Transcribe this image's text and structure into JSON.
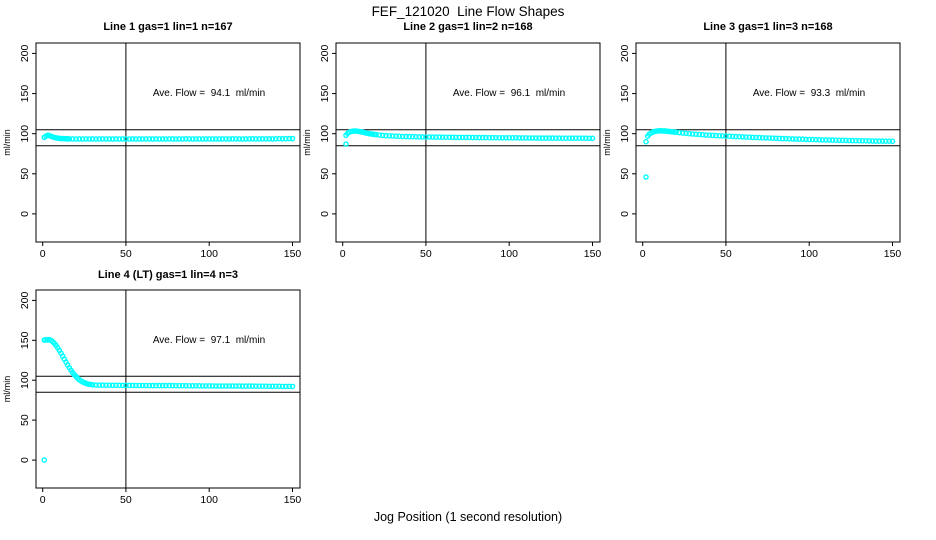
{
  "figure": {
    "title": "FEF_121020  Line Flow Shapes",
    "xlabel": "Jog Position (1 second resolution)",
    "point_color": "#00ffff",
    "axis_color": "#000000",
    "background": "#ffffff"
  },
  "chart_data": [
    {
      "type": "scatter",
      "title": "Line 1 gas=1 lin=1 n=167",
      "annotation": "Ave. Flow =  94.1  ml/min",
      "ylabel": "ml/min",
      "xlim": [
        -4,
        154.5
      ],
      "ylim": [
        -35,
        213
      ],
      "xticks": [
        0,
        50,
        100,
        150
      ],
      "yticks": [
        0,
        50,
        100,
        150,
        200
      ],
      "hlines": [
        105,
        85
      ],
      "vlines": [
        50
      ],
      "grid": false,
      "ave_flow_ml_min": 94.1,
      "points": [
        [
          1,
          95.5
        ],
        [
          2,
          97
        ],
        [
          3,
          98
        ],
        [
          4,
          97.6
        ],
        [
          5,
          96.8
        ],
        [
          6,
          96
        ],
        [
          7,
          95.3
        ],
        [
          8,
          94.8
        ],
        [
          9,
          94.4
        ],
        [
          10,
          94.1
        ],
        [
          11,
          93.9
        ],
        [
          12,
          93.8
        ],
        [
          13,
          93.7
        ],
        [
          14,
          93.6
        ],
        [
          15,
          93.6
        ],
        [
          16,
          93.5
        ],
        [
          18,
          93.5
        ],
        [
          20,
          93.4
        ],
        [
          22,
          93.5
        ],
        [
          24,
          93.4
        ],
        [
          26,
          93.5
        ],
        [
          28,
          93.4
        ],
        [
          30,
          93.5
        ],
        [
          32,
          93.4
        ],
        [
          34,
          93.5
        ],
        [
          36,
          93.5
        ],
        [
          38,
          93.4
        ],
        [
          40,
          93.5
        ],
        [
          42,
          93.4
        ],
        [
          44,
          93.5
        ],
        [
          46,
          93.4
        ],
        [
          48,
          93.5
        ],
        [
          50,
          93.5
        ],
        [
          52,
          93.4
        ],
        [
          54,
          93.5
        ],
        [
          56,
          93.4
        ],
        [
          58,
          93.5
        ],
        [
          60,
          93.4
        ],
        [
          62,
          93.5
        ],
        [
          64,
          93.5
        ],
        [
          66,
          93.4
        ],
        [
          68,
          93.5
        ],
        [
          70,
          93.4
        ],
        [
          72,
          93.5
        ],
        [
          74,
          93.4
        ],
        [
          76,
          93.5
        ],
        [
          78,
          93.5
        ],
        [
          80,
          93.4
        ],
        [
          82,
          93.5
        ],
        [
          84,
          93.4
        ],
        [
          86,
          93.6
        ],
        [
          88,
          93.5
        ],
        [
          90,
          93.4
        ],
        [
          92,
          93.5
        ],
        [
          94,
          93.5
        ],
        [
          96,
          93.4
        ],
        [
          98,
          93.5
        ],
        [
          100,
          93.5
        ],
        [
          102,
          93.4
        ],
        [
          104,
          93.5
        ],
        [
          106,
          93.4
        ],
        [
          108,
          93.5
        ],
        [
          110,
          93.5
        ],
        [
          112,
          93.4
        ],
        [
          114,
          93.6
        ],
        [
          116,
          93.5
        ],
        [
          118,
          93.5
        ],
        [
          120,
          93.4
        ],
        [
          122,
          93.5
        ],
        [
          124,
          93.5
        ],
        [
          126,
          93.6
        ],
        [
          128,
          93.5
        ],
        [
          130,
          93.5
        ],
        [
          132,
          93.6
        ],
        [
          134,
          93.5
        ],
        [
          136,
          93.6
        ],
        [
          138,
          93.5
        ],
        [
          140,
          93.6
        ],
        [
          142,
          93.7
        ],
        [
          144,
          93.6
        ],
        [
          146,
          93.7
        ],
        [
          148,
          93.8
        ],
        [
          150,
          93.8
        ]
      ]
    },
    {
      "type": "scatter",
      "title": "Line 2 gas=1 lin=2 n=168",
      "annotation": "Ave. Flow =  96.1  ml/min",
      "ylabel": "ml/min",
      "xlim": [
        -4,
        154.5
      ],
      "ylim": [
        -35,
        213
      ],
      "xticks": [
        0,
        50,
        100,
        150
      ],
      "yticks": [
        0,
        50,
        100,
        150,
        200
      ],
      "hlines": [
        105,
        85
      ],
      "vlines": [
        50
      ],
      "grid": false,
      "ave_flow_ml_min": 96.1,
      "points": [
        [
          2,
          87
        ],
        [
          2,
          98
        ],
        [
          3,
          100.5
        ],
        [
          4,
          101.8
        ],
        [
          5,
          102.6
        ],
        [
          6,
          103.1
        ],
        [
          7,
          103.3
        ],
        [
          8,
          103.2
        ],
        [
          9,
          103
        ],
        [
          10,
          102.7
        ],
        [
          11,
          102.3
        ],
        [
          12,
          101.9
        ],
        [
          13,
          101.4
        ],
        [
          14,
          100.9
        ],
        [
          15,
          100.5
        ],
        [
          16,
          100.1
        ],
        [
          17,
          99.7
        ],
        [
          18,
          99.4
        ],
        [
          19,
          99.1
        ],
        [
          20,
          98.8
        ],
        [
          22,
          98.3
        ],
        [
          24,
          97.9
        ],
        [
          26,
          97.6
        ],
        [
          28,
          97.3
        ],
        [
          30,
          97.1
        ],
        [
          32,
          96.9
        ],
        [
          34,
          96.7
        ],
        [
          36,
          96.5
        ],
        [
          38,
          96.4
        ],
        [
          40,
          96.3
        ],
        [
          42,
          96.2
        ],
        [
          44,
          96.1
        ],
        [
          46,
          96
        ],
        [
          48,
          95.9
        ],
        [
          50,
          95.9
        ],
        [
          52,
          95.8
        ],
        [
          54,
          95.8
        ],
        [
          56,
          95.7
        ],
        [
          58,
          95.7
        ],
        [
          60,
          95.6
        ],
        [
          62,
          95.6
        ],
        [
          64,
          95.5
        ],
        [
          66,
          95.5
        ],
        [
          68,
          95.4
        ],
        [
          70,
          95.4
        ],
        [
          72,
          95.3
        ],
        [
          74,
          95.3
        ],
        [
          76,
          95.3
        ],
        [
          78,
          95.2
        ],
        [
          80,
          95.2
        ],
        [
          82,
          95.1
        ],
        [
          84,
          95.1
        ],
        [
          86,
          95.1
        ],
        [
          88,
          95
        ],
        [
          90,
          95
        ],
        [
          92,
          95
        ],
        [
          94,
          94.9
        ],
        [
          96,
          94.9
        ],
        [
          98,
          94.9
        ],
        [
          100,
          94.8
        ],
        [
          102,
          94.8
        ],
        [
          104,
          94.8
        ],
        [
          106,
          94.7
        ],
        [
          108,
          94.7
        ],
        [
          110,
          94.7
        ],
        [
          112,
          94.6
        ],
        [
          114,
          94.6
        ],
        [
          116,
          94.6
        ],
        [
          118,
          94.6
        ],
        [
          120,
          94.5
        ],
        [
          122,
          94.5
        ],
        [
          124,
          94.5
        ],
        [
          126,
          94.5
        ],
        [
          128,
          94.4
        ],
        [
          130,
          94.4
        ],
        [
          132,
          94.4
        ],
        [
          134,
          94.4
        ],
        [
          136,
          94.4
        ],
        [
          138,
          94.3
        ],
        [
          140,
          94.3
        ],
        [
          142,
          94.3
        ],
        [
          144,
          94.3
        ],
        [
          146,
          94.3
        ],
        [
          148,
          94.2
        ],
        [
          150,
          94.2
        ]
      ]
    },
    {
      "type": "scatter",
      "title": "Line 3 gas=1 lin=3 n=168",
      "annotation": "Ave. Flow =  93.3  ml/min",
      "ylabel": "ml/min",
      "xlim": [
        -4,
        154.5
      ],
      "ylim": [
        -35,
        213
      ],
      "xticks": [
        0,
        50,
        100,
        150
      ],
      "yticks": [
        0,
        50,
        100,
        150,
        200
      ],
      "hlines": [
        105,
        85
      ],
      "vlines": [
        50
      ],
      "grid": false,
      "ave_flow_ml_min": 93.3,
      "points": [
        [
          2,
          46
        ],
        [
          2,
          90
        ],
        [
          3,
          97
        ],
        [
          4,
          99.3
        ],
        [
          5,
          100.8
        ],
        [
          6,
          101.9
        ],
        [
          7,
          102.6
        ],
        [
          8,
          103.1
        ],
        [
          9,
          103.4
        ],
        [
          10,
          103.6
        ],
        [
          11,
          103.6
        ],
        [
          12,
          103.5
        ],
        [
          13,
          103.4
        ],
        [
          14,
          103.2
        ],
        [
          15,
          103
        ],
        [
          16,
          102.8
        ],
        [
          17,
          102.5
        ],
        [
          18,
          102.3
        ],
        [
          19,
          102
        ],
        [
          20,
          101.8
        ],
        [
          22,
          101.3
        ],
        [
          24,
          100.8
        ],
        [
          26,
          100.4
        ],
        [
          28,
          100
        ],
        [
          30,
          99.6
        ],
        [
          32,
          99.3
        ],
        [
          34,
          99
        ],
        [
          36,
          98.7
        ],
        [
          38,
          98.4
        ],
        [
          40,
          98.1
        ],
        [
          42,
          97.9
        ],
        [
          44,
          97.6
        ],
        [
          46,
          97.4
        ],
        [
          48,
          97.2
        ],
        [
          50,
          97
        ],
        [
          52,
          96.8
        ],
        [
          54,
          96.6
        ],
        [
          56,
          96.4
        ],
        [
          58,
          96.2
        ],
        [
          60,
          96
        ],
        [
          62,
          95.8
        ],
        [
          64,
          95.6
        ],
        [
          66,
          95.4
        ],
        [
          68,
          95.2
        ],
        [
          70,
          95.1
        ],
        [
          72,
          94.9
        ],
        [
          74,
          94.7
        ],
        [
          76,
          94.6
        ],
        [
          78,
          94.4
        ],
        [
          80,
          94.2
        ],
        [
          82,
          94.1
        ],
        [
          84,
          93.9
        ],
        [
          86,
          93.8
        ],
        [
          88,
          93.6
        ],
        [
          90,
          93.5
        ],
        [
          92,
          93.3
        ],
        [
          94,
          93.2
        ],
        [
          96,
          93.1
        ],
        [
          98,
          92.9
        ],
        [
          100,
          92.8
        ],
        [
          102,
          92.7
        ],
        [
          104,
          92.5
        ],
        [
          106,
          92.4
        ],
        [
          108,
          92.3
        ],
        [
          110,
          92.2
        ],
        [
          112,
          92.1
        ],
        [
          114,
          92
        ],
        [
          116,
          91.9
        ],
        [
          118,
          91.8
        ],
        [
          120,
          91.7
        ],
        [
          122,
          91.6
        ],
        [
          124,
          91.5
        ],
        [
          126,
          91.4
        ],
        [
          128,
          91.3
        ],
        [
          130,
          91.2
        ],
        [
          132,
          91.1
        ],
        [
          134,
          91.1
        ],
        [
          136,
          91
        ],
        [
          138,
          90.9
        ],
        [
          140,
          90.8
        ],
        [
          142,
          90.8
        ],
        [
          144,
          90.7
        ],
        [
          146,
          90.6
        ],
        [
          148,
          90.6
        ],
        [
          150,
          90.5
        ]
      ]
    },
    {
      "type": "scatter",
      "title": "Line 4 (LT) gas=1 lin=4 n=3",
      "annotation": "Ave. Flow =  97.1  ml/min",
      "ylabel": "ml/min",
      "xlim": [
        -4,
        154.5
      ],
      "ylim": [
        -35,
        213
      ],
      "xticks": [
        0,
        50,
        100,
        150
      ],
      "yticks": [
        0,
        50,
        100,
        150,
        200
      ],
      "hlines": [
        105,
        85
      ],
      "vlines": [
        50
      ],
      "grid": false,
      "ave_flow_ml_min": 97.1,
      "points": [
        [
          1,
          0
        ],
        [
          1,
          150.2
        ],
        [
          2,
          150.8
        ],
        [
          3,
          150.4
        ],
        [
          4,
          150.9
        ],
        [
          5,
          149.9
        ],
        [
          6,
          148.3
        ],
        [
          7,
          146.2
        ],
        [
          8,
          143.6
        ],
        [
          9,
          140.6
        ],
        [
          10,
          137.3
        ],
        [
          11,
          133.8
        ],
        [
          12,
          130.1
        ],
        [
          13,
          126.4
        ],
        [
          14,
          122.7
        ],
        [
          15,
          119.1
        ],
        [
          16,
          115.7
        ],
        [
          17,
          112.5
        ],
        [
          18,
          109.6
        ],
        [
          19,
          106.9
        ],
        [
          20,
          104.6
        ],
        [
          21,
          102.5
        ],
        [
          22,
          100.7
        ],
        [
          23,
          99.2
        ],
        [
          24,
          97.9
        ],
        [
          25,
          96.9
        ],
        [
          26,
          96.1
        ],
        [
          27,
          95.4
        ],
        [
          28,
          94.9
        ],
        [
          29,
          94.6
        ],
        [
          30,
          94.3
        ],
        [
          32,
          94
        ],
        [
          34,
          93.9
        ],
        [
          36,
          93.8
        ],
        [
          38,
          93.7
        ],
        [
          40,
          93.7
        ],
        [
          42,
          93.6
        ],
        [
          44,
          93.6
        ],
        [
          46,
          93.6
        ],
        [
          48,
          93.5
        ],
        [
          50,
          93.5
        ],
        [
          52,
          93.5
        ],
        [
          54,
          93.5
        ],
        [
          56,
          93.4
        ],
        [
          58,
          93.4
        ],
        [
          60,
          93.4
        ],
        [
          62,
          93.4
        ],
        [
          64,
          93.3
        ],
        [
          66,
          93.3
        ],
        [
          68,
          93.3
        ],
        [
          70,
          93.3
        ],
        [
          72,
          93.2
        ],
        [
          74,
          93.2
        ],
        [
          76,
          93.2
        ],
        [
          78,
          93.2
        ],
        [
          80,
          93.1
        ],
        [
          82,
          93.1
        ],
        [
          84,
          93.1
        ],
        [
          86,
          93.1
        ],
        [
          88,
          93
        ],
        [
          90,
          93
        ],
        [
          92,
          93
        ],
        [
          94,
          93
        ],
        [
          96,
          92.9
        ],
        [
          98,
          92.9
        ],
        [
          100,
          92.9
        ],
        [
          102,
          92.9
        ],
        [
          104,
          92.8
        ],
        [
          106,
          92.8
        ],
        [
          108,
          92.8
        ],
        [
          110,
          92.8
        ],
        [
          112,
          92.7
        ],
        [
          114,
          92.7
        ],
        [
          116,
          92.7
        ],
        [
          118,
          92.7
        ],
        [
          120,
          92.6
        ],
        [
          122,
          92.6
        ],
        [
          124,
          92.6
        ],
        [
          126,
          92.6
        ],
        [
          128,
          92.5
        ],
        [
          130,
          92.5
        ],
        [
          132,
          92.5
        ],
        [
          134,
          92.5
        ],
        [
          136,
          92.4
        ],
        [
          138,
          92.4
        ],
        [
          140,
          92.4
        ],
        [
          142,
          92.4
        ],
        [
          144,
          92.3
        ],
        [
          146,
          92.3
        ],
        [
          148,
          92.3
        ],
        [
          150,
          92.3
        ]
      ]
    }
  ]
}
